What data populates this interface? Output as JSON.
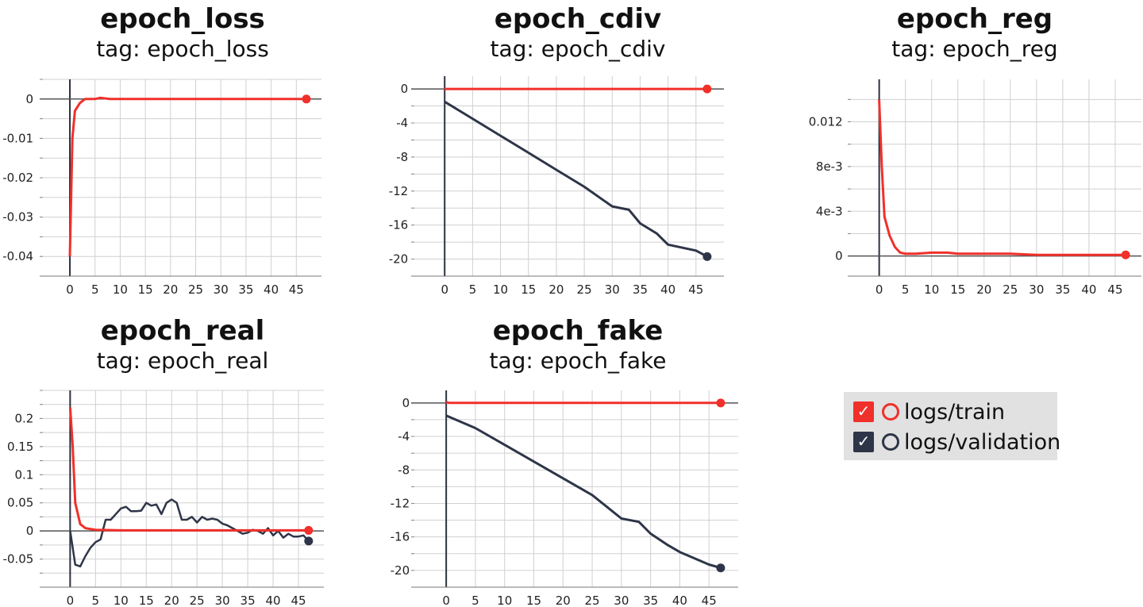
{
  "colors": {
    "train": "#f0302b",
    "validation": "#2e3548",
    "grid": "#d0d0d0",
    "axis": "#2c3140"
  },
  "legend": {
    "items": [
      {
        "label": "logs/train",
        "color": "#f0302b",
        "checked": true,
        "check": "✓"
      },
      {
        "label": "logs/validation",
        "color": "#2e3548",
        "checked": true,
        "check": "✓"
      }
    ]
  },
  "chart_data": [
    {
      "type": "line",
      "title": "epoch_loss",
      "subtitle": "tag: epoch_loss",
      "xlim": [
        -6,
        50
      ],
      "ylim": [
        -0.045,
        0.005
      ],
      "xticks": [
        0,
        5,
        10,
        15,
        20,
        25,
        30,
        35,
        40,
        45
      ],
      "yticks": [
        0,
        -0.01,
        -0.02,
        -0.03,
        -0.04
      ],
      "ytick_labels": [
        "0",
        "-0.01",
        "-0.02",
        "-0.03",
        "-0.04"
      ],
      "series": [
        {
          "name": "logs/train",
          "color": "#f0302b",
          "x": [
            0,
            0.5,
            1,
            2,
            3,
            4,
            5,
            6,
            8,
            10,
            15,
            20,
            25,
            30,
            35,
            40,
            45,
            47
          ],
          "y": [
            -0.04,
            -0.01,
            -0.003,
            -0.001,
            0,
            0,
            0,
            0.0003,
            0,
            0,
            0,
            0,
            0,
            0,
            0,
            0,
            0,
            0
          ],
          "end_marker": true
        }
      ]
    },
    {
      "type": "line",
      "title": "epoch_cdiv",
      "subtitle": "tag: epoch_cdiv",
      "xlim": [
        -6,
        50
      ],
      "ylim": [
        -22,
        1.5
      ],
      "xticks": [
        0,
        5,
        10,
        15,
        20,
        25,
        30,
        35,
        40,
        45
      ],
      "yticks": [
        0,
        -4,
        -8,
        -12,
        -16,
        -20
      ],
      "ytick_labels": [
        "0",
        "-4",
        "-8",
        "-12",
        "-16",
        "-20"
      ],
      "series": [
        {
          "name": "logs/train",
          "color": "#f0302b",
          "x": [
            0,
            47
          ],
          "y": [
            0,
            0
          ],
          "end_marker": true
        },
        {
          "name": "logs/validation",
          "color": "#2e3548",
          "x": [
            0,
            5,
            10,
            15,
            20,
            25,
            30,
            33,
            35,
            38,
            40,
            45,
            47
          ],
          "y": [
            -1.5,
            -3.5,
            -5.5,
            -7.5,
            -9.5,
            -11.5,
            -13.8,
            -14.2,
            -15.8,
            -17,
            -18.3,
            -19,
            -19.7
          ],
          "end_marker": true
        }
      ]
    },
    {
      "type": "line",
      "title": "epoch_reg",
      "subtitle": "tag: epoch_reg",
      "xlim": [
        -6,
        50
      ],
      "ylim": [
        -0.0018,
        0.0158
      ],
      "xticks": [
        0,
        5,
        10,
        15,
        20,
        25,
        30,
        35,
        40,
        45
      ],
      "yticks": [
        0,
        0.004,
        0.008,
        0.012
      ],
      "ytick_labels": [
        "0",
        "4e-3",
        "8e-3",
        "0.012"
      ],
      "series": [
        {
          "name": "logs/train",
          "color": "#f0302b",
          "x": [
            0,
            0.5,
            1,
            2,
            3,
            4,
            5,
            7,
            10,
            13,
            15,
            20,
            25,
            30,
            40,
            47
          ],
          "y": [
            0.014,
            0.008,
            0.0035,
            0.0018,
            0.0008,
            0.0003,
            0.0002,
            0.0002,
            0.0003,
            0.0003,
            0.0002,
            0.0002,
            0.0002,
            0.0001,
            0.0001,
            0.0001
          ],
          "end_marker": true
        }
      ]
    },
    {
      "type": "line",
      "title": "epoch_real",
      "subtitle": "tag: epoch_real",
      "xlim": [
        -6,
        50
      ],
      "ylim": [
        -0.1,
        0.25
      ],
      "xticks": [
        0,
        5,
        10,
        15,
        20,
        25,
        30,
        35,
        40,
        45
      ],
      "yticks": [
        0.2,
        0.15,
        0.1,
        0.05,
        0,
        -0.05
      ],
      "ytick_labels": [
        "0.2",
        "0.15",
        "0.1",
        "0.05",
        "0",
        "-0.05"
      ],
      "series": [
        {
          "name": "logs/train",
          "color": "#f0302b",
          "x": [
            0,
            0.5,
            1,
            2,
            3,
            5,
            10,
            20,
            30,
            40,
            47
          ],
          "y": [
            0.22,
            0.15,
            0.05,
            0.012,
            0.005,
            0.002,
            0.001,
            0.001,
            0.001,
            0.001,
            0.001
          ],
          "end_marker": true
        }
      ]
    },
    {
      "type": "line",
      "title": "epoch_fake",
      "subtitle": "tag: epoch_fake",
      "xlim": [
        -6,
        50
      ],
      "ylim": [
        -22,
        1.5
      ],
      "xticks": [
        0,
        5,
        10,
        15,
        20,
        25,
        30,
        35,
        40,
        45
      ],
      "yticks": [
        0,
        -4,
        -8,
        -12,
        -16,
        -20
      ],
      "ytick_labels": [
        "0",
        "-4",
        "-8",
        "-12",
        "-16",
        "-20"
      ],
      "series": [
        {
          "name": "logs/train",
          "color": "#f0302b",
          "x": [
            0,
            0.5,
            1,
            47
          ],
          "y": [
            0.1,
            0,
            0,
            0
          ],
          "end_marker": true
        },
        {
          "name": "logs/validation",
          "color": "#2e3548",
          "x": [
            0,
            5,
            10,
            15,
            20,
            25,
            30,
            33,
            35,
            38,
            40,
            45,
            47
          ],
          "y": [
            -1.5,
            -3,
            -5,
            -7,
            -9,
            -11,
            -13.8,
            -14.2,
            -15.6,
            -17,
            -17.8,
            -19.3,
            -19.7
          ],
          "end_marker": true
        }
      ]
    }
  ]
}
